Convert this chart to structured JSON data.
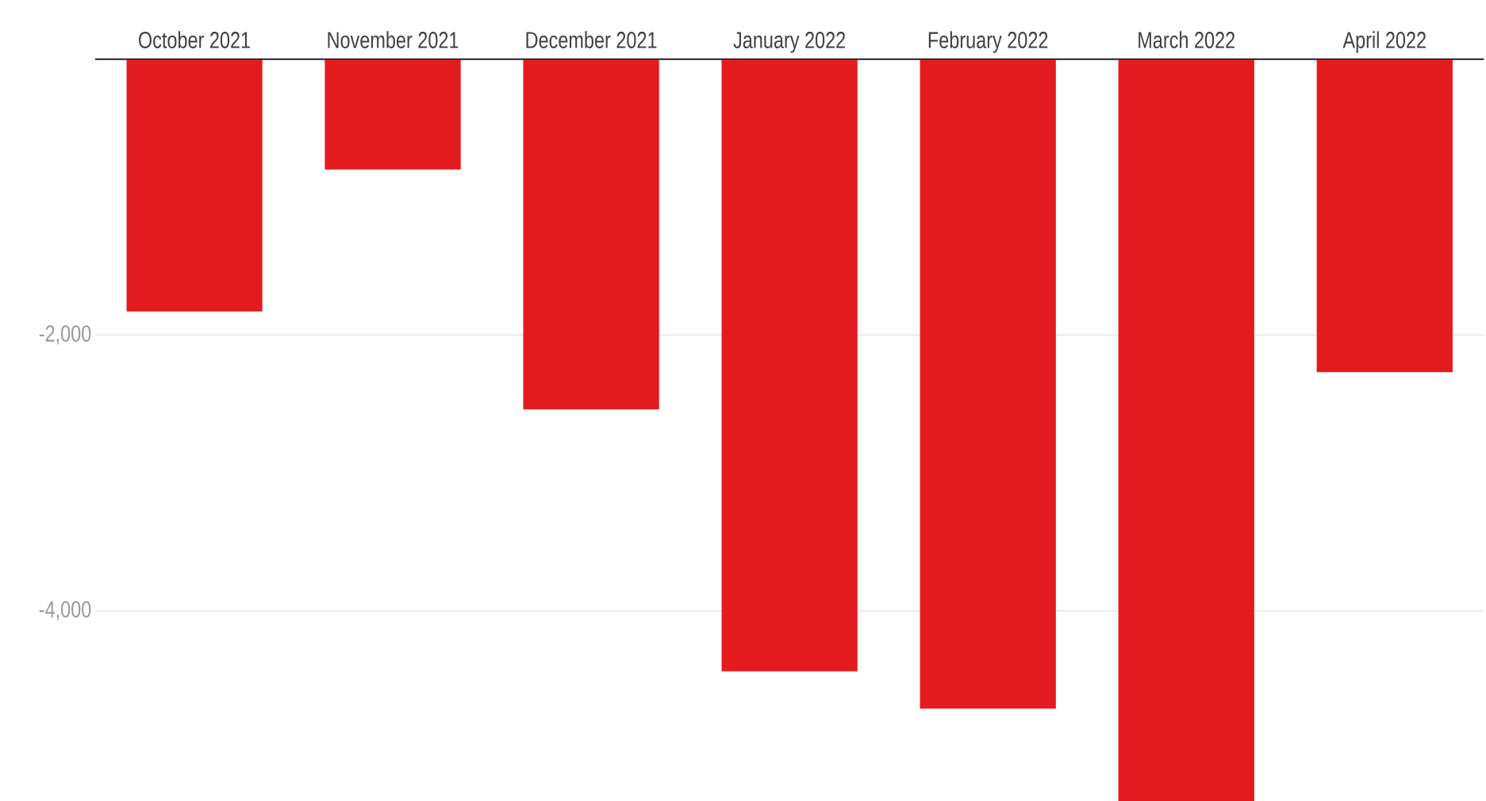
{
  "chart_data": {
    "type": "bar",
    "categories": [
      "October 2021",
      "November 2021",
      "December 2021",
      "January 2022",
      "February 2022",
      "March 2022",
      "April 2022"
    ],
    "values": [
      -1830,
      -800,
      -2540,
      -4440,
      -4710,
      -5380,
      -2270
    ],
    "color": "#e31b1e",
    "ylim": [
      -5380,
      0
    ],
    "yticks": [
      {
        "value": -2000,
        "label": "-2,000"
      },
      {
        "value": -4000,
        "label": "-4,000"
      }
    ],
    "grid": "y"
  }
}
